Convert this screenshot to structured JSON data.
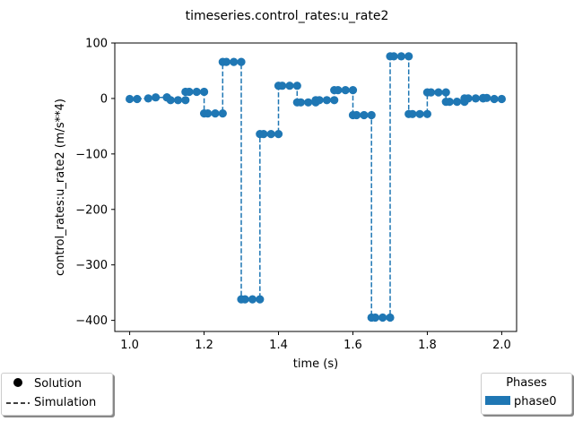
{
  "chart_data": {
    "type": "line",
    "title": "timeseries.control_rates:u_rate2",
    "xlabel": "time (s)",
    "ylabel": "control_rates:u_rate2 (m/s**4)",
    "xlim": [
      0.96,
      2.04
    ],
    "ylim": [
      -420,
      100
    ],
    "xticks": [
      "1.0",
      "1.2",
      "1.4",
      "1.6",
      "1.8",
      "2.0"
    ],
    "yticks": [
      "100",
      "0",
      "−100",
      "−200",
      "−300",
      "−400"
    ],
    "grid": false,
    "color": "#1f77b4",
    "solution": {
      "x": [
        1.0,
        1.02,
        1.05,
        1.07,
        1.1,
        1.1,
        1.11,
        1.13,
        1.15,
        1.15,
        1.16,
        1.18,
        1.2,
        1.2,
        1.21,
        1.23,
        1.25,
        1.25,
        1.26,
        1.28,
        1.3,
        1.3,
        1.31,
        1.33,
        1.35,
        1.35,
        1.36,
        1.38,
        1.4,
        1.4,
        1.41,
        1.43,
        1.45,
        1.45,
        1.46,
        1.48,
        1.5,
        1.5,
        1.51,
        1.53,
        1.55,
        1.55,
        1.56,
        1.58,
        1.6,
        1.6,
        1.61,
        1.63,
        1.65,
        1.65,
        1.66,
        1.68,
        1.7,
        1.7,
        1.71,
        1.73,
        1.75,
        1.75,
        1.76,
        1.78,
        1.8,
        1.8,
        1.81,
        1.83,
        1.85,
        1.85,
        1.86,
        1.88,
        1.9,
        1.9,
        1.91,
        1.93,
        1.95,
        1.95,
        1.96,
        1.98,
        2.0
      ],
      "y": [
        -1,
        -1,
        0,
        2,
        2,
        2,
        -3,
        -3,
        -3,
        12,
        12,
        12,
        12,
        -27,
        -27,
        -27,
        -27,
        66,
        66,
        66,
        66,
        -362,
        -362,
        -362,
        -362,
        -64,
        -64,
        -64,
        -64,
        23,
        23,
        23,
        23,
        -7,
        -7,
        -7,
        -7,
        -3,
        -3,
        -3,
        -3,
        15,
        15,
        15,
        15,
        -30,
        -30,
        -30,
        -30,
        -395,
        -395,
        -395,
        -395,
        76,
        76,
        76,
        76,
        -28,
        -28,
        -28,
        -28,
        11,
        11,
        11,
        11,
        -6,
        -6,
        -6,
        -6,
        0,
        0,
        0,
        0,
        1,
        1,
        -1,
        -1
      ]
    },
    "simulation": {
      "x": [
        1.0,
        1.05,
        1.07,
        1.1,
        1.1,
        1.15,
        1.15,
        1.2,
        1.2,
        1.25,
        1.25,
        1.3,
        1.3,
        1.35,
        1.35,
        1.4,
        1.4,
        1.45,
        1.45,
        1.5,
        1.5,
        1.55,
        1.55,
        1.6,
        1.6,
        1.65,
        1.65,
        1.7,
        1.7,
        1.75,
        1.75,
        1.8,
        1.8,
        1.85,
        1.85,
        1.9,
        1.9,
        1.95,
        1.95,
        2.0
      ],
      "y": [
        -1,
        0,
        2,
        2,
        -3,
        -3,
        12,
        12,
        -27,
        -27,
        66,
        66,
        -362,
        -362,
        -64,
        -64,
        23,
        23,
        -7,
        -7,
        -3,
        -3,
        15,
        15,
        -30,
        -30,
        -395,
        -395,
        76,
        76,
        -28,
        -28,
        11,
        11,
        -6,
        -6,
        0,
        0,
        1,
        -1
      ]
    }
  },
  "legend_left": {
    "items": [
      {
        "label": "Solution",
        "marker": "dot"
      },
      {
        "label": "Simulation",
        "marker": "dash"
      }
    ]
  },
  "legend_right": {
    "title": "Phases",
    "items": [
      {
        "label": "phase0",
        "marker": "patch"
      }
    ]
  }
}
